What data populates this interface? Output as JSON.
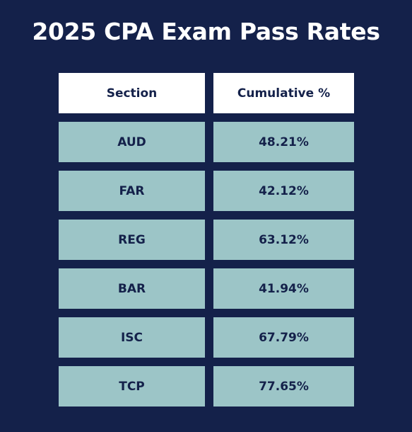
{
  "title": "2025 CPA Exam Pass Rates",
  "colors": {
    "background": "#14214a",
    "header_fill": "#ffffff",
    "row_fill": "#9cc5c7",
    "text_dark": "#14214a"
  },
  "chart_data": {
    "type": "table",
    "title": "2025 CPA Exam Pass Rates",
    "columns": [
      "Section",
      "Cumulative %"
    ],
    "rows": [
      [
        "AUD",
        "48.21%"
      ],
      [
        "FAR",
        "42.12%"
      ],
      [
        "REG",
        "63.12%"
      ],
      [
        "BAR",
        "41.94%"
      ],
      [
        "ISC",
        "67.79%"
      ],
      [
        "TCP",
        "77.65%"
      ]
    ]
  }
}
